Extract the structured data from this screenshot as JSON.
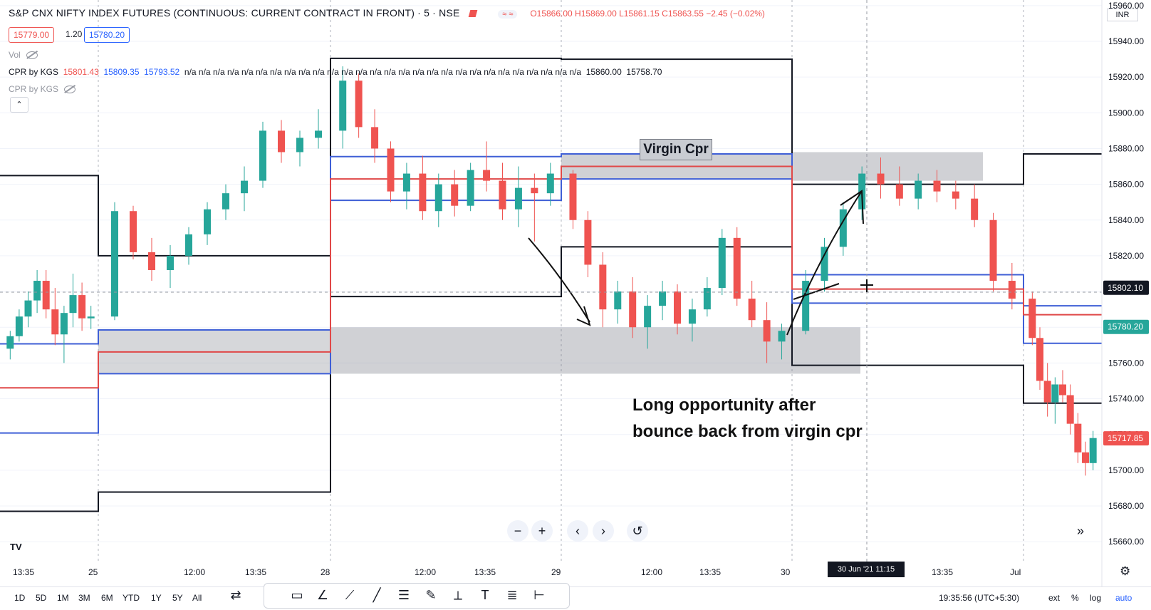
{
  "header": {
    "symbol": "S&P CNX NIFTY INDEX FUTURES (CONTINUOUS: CURRENT CONTRACT IN FRONT) · 5 · NSE",
    "pill": "≈ ≈",
    "ohlc": "O15866.00 H15869.00 L15861.15 C15863.55 −2.45 (−0.02%)"
  },
  "quote": {
    "sell": "15779.00",
    "spread": "1.20",
    "buy": "15780.20"
  },
  "indicators": {
    "vol_label": "Vol",
    "cpr1_label": "CPR by KGS",
    "cpr1_v1": "15801.43",
    "cpr1_v2": "15809.35",
    "cpr1_v3": "15793.52",
    "cpr1_na": "n/a n/a n/a n/a n/a n/a n/a n/a n/a n/a n/a n/a n/a n/a n/a n/a n/a n/a n/a n/a n/a n/a n/a n/a n/a n/a n/a n/a",
    "cpr1_v4": "15860.00",
    "cpr1_v5": "15758.70",
    "cpr2_label": "CPR by KGS",
    "collapse": "⌃"
  },
  "annotations": {
    "virgin": "Virgin Cpr",
    "long_note": "Long opportunity after bounce back from virgin cpr"
  },
  "currency": "INR",
  "controls": {
    "zoom_out": "−",
    "zoom_in": "+",
    "back": "‹",
    "forward": "›",
    "reset": "↺",
    "skip": "»"
  },
  "logo": "TV",
  "time_axis": {
    "labels": [
      "13:35",
      "25",
      "12:00",
      "13:35",
      "28",
      "12:00",
      "13:35",
      "29",
      "12:00",
      "13:35",
      "30",
      "13:35",
      "Jul"
    ],
    "cursor_badge": "30 Jun '21   11:15"
  },
  "bottom": {
    "ranges": [
      "1D",
      "5D",
      "1M",
      "3M",
      "6M",
      "YTD",
      "1Y",
      "5Y",
      "All"
    ],
    "clock": "19:35:56 (UTC+5:30)",
    "options": [
      "ext",
      "%",
      "log",
      "auto"
    ]
  },
  "chart_data": {
    "type": "candlestick",
    "ylim": [
      15650,
      15960
    ],
    "y_ticks": [
      15660,
      15680,
      15700,
      15720,
      15740,
      15760,
      15780,
      15800,
      15820,
      15840,
      15860,
      15880,
      15900,
      15920,
      15940,
      15960
    ],
    "y_tick_labels": [
      "15660.00",
      "15680.00",
      "15700.00",
      "15720.00",
      "15740.00",
      "15760.00",
      "15780.00",
      "15800.00",
      "15820.00",
      "15840.00",
      "15860.00",
      "15880.00",
      "15900.00",
      "15920.00",
      "15940.00",
      "15960.00"
    ],
    "price_tags": [
      {
        "label": "15802.10",
        "value": 15802.1,
        "color": "#131722"
      },
      {
        "label": "15780.20",
        "value": 15780.2,
        "color": "#26a69a"
      },
      {
        "label": "15717.85",
        "value": 15717.85,
        "color": "#ef5350"
      }
    ],
    "day_dividers": [
      "25",
      "28",
      "29",
      "30",
      "Jul"
    ],
    "cpr_levels": [
      {
        "day": "24",
        "top": 15770.7,
        "pivot": 15746.1,
        "bottom": 15720.8,
        "r1": 15864.9,
        "s1": 15677.0
      },
      {
        "day": "25",
        "top": 15778.5,
        "pivot": 15766.2,
        "bottom": 15754.0,
        "r1": 15820.0,
        "s1": 15687.8
      },
      {
        "day": "28",
        "top": 15875.5,
        "pivot": 15863.0,
        "bottom": 15851.0,
        "r1": 15930.5,
        "s1": 15797.2
      },
      {
        "day": "29",
        "top": 15877.0,
        "pivot": 15870.0,
        "bottom": 15863.0,
        "r1": 15930.0,
        "s1": 15825.0
      },
      {
        "day": "30",
        "top": 15809.4,
        "pivot": 15801.4,
        "bottom": 15793.5,
        "r1": 15860.0,
        "s1": 15758.7
      },
      {
        "day": "Jul",
        "top": 15792.0,
        "pivot": 15787.0,
        "bottom": 15771.0,
        "r1": 15877.0,
        "s1": 15737.5
      }
    ],
    "virgin_zones": [
      {
        "from_day": "29",
        "to_day": "30",
        "top": 15877.0,
        "bottom": 15863.0
      },
      {
        "from_day": "30",
        "to_day": "30",
        "top": 15878.0,
        "bottom": 15862.0
      },
      {
        "from_day": "28",
        "to_day": "30",
        "top": 15780.0,
        "bottom": 15754.0
      }
    ],
    "candles": [
      {
        "o": 15768,
        "h": 15778,
        "l": 15762,
        "c": 15775
      },
      {
        "o": 15775,
        "h": 15790,
        "l": 15772,
        "c": 15786
      },
      {
        "o": 15786,
        "h": 15800,
        "l": 15780,
        "c": 15795
      },
      {
        "o": 15795,
        "h": 15812,
        "l": 15788,
        "c": 15806
      },
      {
        "o": 15806,
        "h": 15812,
        "l": 15785,
        "c": 15790
      },
      {
        "o": 15790,
        "h": 15802,
        "l": 15770,
        "c": 15776
      },
      {
        "o": 15776,
        "h": 15792,
        "l": 15760,
        "c": 15788
      },
      {
        "o": 15788,
        "h": 15810,
        "l": 15780,
        "c": 15798
      },
      {
        "o": 15798,
        "h": 15805,
        "l": 15778,
        "c": 15785
      },
      {
        "o": 15785,
        "h": 15792,
        "l": 15779,
        "c": 15786
      },
      {
        "o": 15786,
        "h": 15850,
        "l": 15784,
        "c": 15845
      },
      {
        "o": 15845,
        "h": 15848,
        "l": 15818,
        "c": 15822
      },
      {
        "o": 15822,
        "h": 15830,
        "l": 15806,
        "c": 15812
      },
      {
        "o": 15812,
        "h": 15826,
        "l": 15802,
        "c": 15820
      },
      {
        "o": 15820,
        "h": 15836,
        "l": 15815,
        "c": 15832
      },
      {
        "o": 15832,
        "h": 15850,
        "l": 15826,
        "c": 15846
      },
      {
        "o": 15846,
        "h": 15860,
        "l": 15840,
        "c": 15855
      },
      {
        "o": 15855,
        "h": 15870,
        "l": 15845,
        "c": 15862
      },
      {
        "o": 15862,
        "h": 15895,
        "l": 15858,
        "c": 15890
      },
      {
        "o": 15890,
        "h": 15896,
        "l": 15872,
        "c": 15878
      },
      {
        "o": 15878,
        "h": 15890,
        "l": 15870,
        "c": 15886
      },
      {
        "o": 15886,
        "h": 15902,
        "l": 15880,
        "c": 15890
      },
      {
        "o": 15890,
        "h": 15926,
        "l": 15880,
        "c": 15918
      },
      {
        "o": 15918,
        "h": 15922,
        "l": 15886,
        "c": 15892
      },
      {
        "o": 15892,
        "h": 15902,
        "l": 15872,
        "c": 15880
      },
      {
        "o": 15880,
        "h": 15884,
        "l": 15850,
        "c": 15856
      },
      {
        "o": 15856,
        "h": 15872,
        "l": 15846,
        "c": 15866
      },
      {
        "o": 15866,
        "h": 15876,
        "l": 15840,
        "c": 15845
      },
      {
        "o": 15845,
        "h": 15866,
        "l": 15836,
        "c": 15860
      },
      {
        "o": 15860,
        "h": 15868,
        "l": 15842,
        "c": 15848
      },
      {
        "o": 15848,
        "h": 15872,
        "l": 15845,
        "c": 15868
      },
      {
        "o": 15868,
        "h": 15884,
        "l": 15856,
        "c": 15862
      },
      {
        "o": 15862,
        "h": 15872,
        "l": 15840,
        "c": 15846
      },
      {
        "o": 15846,
        "h": 15870,
        "l": 15836,
        "c": 15858
      },
      {
        "o": 15858,
        "h": 15866,
        "l": 15828,
        "c": 15855
      },
      {
        "o": 15855,
        "h": 15872,
        "l": 15848,
        "c": 15866
      },
      {
        "o": 15866,
        "h": 15868,
        "l": 15835,
        "c": 15840
      },
      {
        "o": 15840,
        "h": 15845,
        "l": 15808,
        "c": 15815
      },
      {
        "o": 15815,
        "h": 15822,
        "l": 15780,
        "c": 15790
      },
      {
        "o": 15790,
        "h": 15806,
        "l": 15782,
        "c": 15800
      },
      {
        "o": 15800,
        "h": 15808,
        "l": 15774,
        "c": 15780
      },
      {
        "o": 15780,
        "h": 15798,
        "l": 15768,
        "c": 15792
      },
      {
        "o": 15792,
        "h": 15806,
        "l": 15784,
        "c": 15800
      },
      {
        "o": 15800,
        "h": 15804,
        "l": 15776,
        "c": 15782
      },
      {
        "o": 15782,
        "h": 15796,
        "l": 15772,
        "c": 15790
      },
      {
        "o": 15790,
        "h": 15808,
        "l": 15786,
        "c": 15802
      },
      {
        "o": 15802,
        "h": 15835,
        "l": 15798,
        "c": 15830
      },
      {
        "o": 15830,
        "h": 15836,
        "l": 15792,
        "c": 15796
      },
      {
        "o": 15796,
        "h": 15806,
        "l": 15780,
        "c": 15784
      },
      {
        "o": 15784,
        "h": 15794,
        "l": 15760,
        "c": 15772
      },
      {
        "o": 15772,
        "h": 15782,
        "l": 15762,
        "c": 15778
      },
      {
        "o": 15778,
        "h": 15812,
        "l": 15776,
        "c": 15806
      },
      {
        "o": 15806,
        "h": 15830,
        "l": 15800,
        "c": 15825
      },
      {
        "o": 15825,
        "h": 15850,
        "l": 15820,
        "c": 15846
      },
      {
        "o": 15846,
        "h": 15870,
        "l": 15840,
        "c": 15866
      },
      {
        "o": 15866,
        "h": 15875,
        "l": 15852,
        "c": 15860
      },
      {
        "o": 15860,
        "h": 15870,
        "l": 15848,
        "c": 15852
      },
      {
        "o": 15852,
        "h": 15866,
        "l": 15846,
        "c": 15862
      },
      {
        "o": 15862,
        "h": 15868,
        "l": 15850,
        "c": 15856
      },
      {
        "o": 15856,
        "h": 15862,
        "l": 15846,
        "c": 15852
      },
      {
        "o": 15852,
        "h": 15860,
        "l": 15836,
        "c": 15840
      },
      {
        "o": 15840,
        "h": 15844,
        "l": 15800,
        "c": 15806
      },
      {
        "o": 15806,
        "h": 15816,
        "l": 15790,
        "c": 15796
      },
      {
        "o": 15796,
        "h": 15800,
        "l": 15770,
        "c": 15774
      },
      {
        "o": 15774,
        "h": 15780,
        "l": 15745,
        "c": 15750
      },
      {
        "o": 15750,
        "h": 15760,
        "l": 15730,
        "c": 15738
      },
      {
        "o": 15738,
        "h": 15752,
        "l": 15726,
        "c": 15748
      },
      {
        "o": 15748,
        "h": 15756,
        "l": 15738,
        "c": 15742
      },
      {
        "o": 15742,
        "h": 15748,
        "l": 15720,
        "c": 15726
      },
      {
        "o": 15726,
        "h": 15732,
        "l": 15704,
        "c": 15710
      },
      {
        "o": 15710,
        "h": 15716,
        "l": 15697,
        "c": 15704
      },
      {
        "o": 15704,
        "h": 15722,
        "l": 15700,
        "c": 15718
      }
    ]
  }
}
